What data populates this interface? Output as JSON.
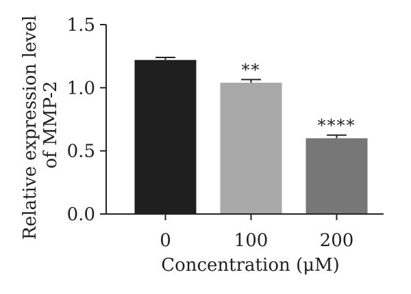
{
  "chart_data": {
    "type": "bar",
    "categories": [
      "0",
      "100",
      "200"
    ],
    "values": [
      1.22,
      1.04,
      0.6
    ],
    "errors": [
      0.02,
      0.025,
      0.025
    ],
    "significance": [
      "",
      "**",
      "****"
    ],
    "bar_colors": [
      "#1f1f1f",
      "#a9a9a9",
      "#777777"
    ],
    "xlabel": "Concentration (μM)",
    "ylabel_lines": [
      "Relative expression level",
      "of MMP-2"
    ],
    "ylim": [
      0,
      1.5
    ],
    "yticks": [
      0,
      0.5,
      1.0,
      1.5
    ],
    "ytick_labels": [
      "0.0",
      "0.5",
      "1.0",
      "1.5"
    ],
    "grid": false,
    "legend": "none"
  }
}
